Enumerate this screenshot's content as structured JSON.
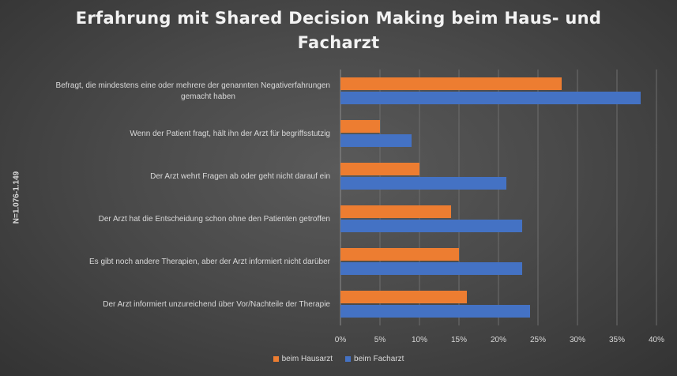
{
  "chart_data": {
    "type": "bar",
    "orientation": "horizontal",
    "title": "Erfahrung mit Shared Decision Making beim Haus- und Facharzt",
    "ylabel": "N=1.076-1.149",
    "xlabel": "",
    "xlim": [
      0,
      40
    ],
    "x_ticks": [
      "0%",
      "5%",
      "10%",
      "15%",
      "20%",
      "25%",
      "30%",
      "35%",
      "40%"
    ],
    "grid": true,
    "legend_position": "bottom",
    "categories": [
      "Befragt, die mindestens eine oder mehrere der genannten Negativerfahrungen gemacht haben",
      "Wenn der Patient fragt, hält ihn der Arzt für begriffsstutzig",
      "Der Arzt wehrt Fragen ab oder geht nicht darauf ein",
      "Der Arzt hat die Entscheidung schon ohne den Patienten getroffen",
      "Es gibt noch andere Therapien, aber der Arzt informiert nicht darüber",
      "Der Arzt informiert unzureichend über Vor/Nachteile der Therapie"
    ],
    "category_lines": [
      [
        "Befragt, die mindestens eine oder mehrere der genannten Negativerfahrungen",
        "gemacht haben"
      ],
      [
        "Wenn der Patient fragt, hält ihn der Arzt für begriffsstutzig"
      ],
      [
        "Der Arzt wehrt Fragen ab oder geht nicht darauf ein"
      ],
      [
        "Der Arzt hat die Entscheidung schon ohne den Patienten getroffen"
      ],
      [
        "Es gibt noch andere Therapien, aber der Arzt informiert nicht darüber"
      ],
      [
        "Der Arzt informiert unzureichend über Vor/Nachteile der Therapie"
      ]
    ],
    "series": [
      {
        "name": "beim Hausarzt",
        "color": "#ed7d31",
        "values": [
          28,
          5,
          10,
          14,
          15,
          16
        ]
      },
      {
        "name": "beim Facharzt",
        "color": "#4472c4",
        "values": [
          38,
          9,
          21,
          23,
          23,
          24
        ]
      }
    ]
  }
}
